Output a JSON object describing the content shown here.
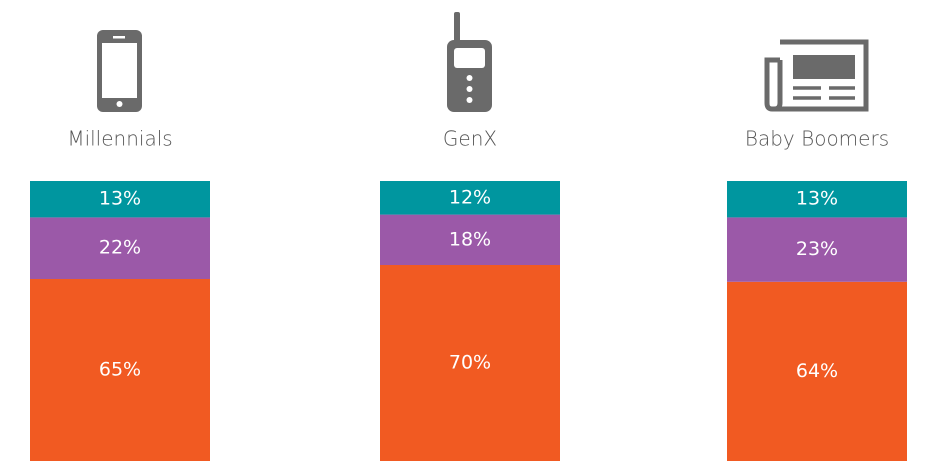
{
  "chart_data": {
    "type": "stacked_bar",
    "categories": [
      "Millennials",
      "GenX",
      "Baby Boomers"
    ],
    "series": [
      {
        "color": "#f15a22",
        "values": [
          65,
          70,
          64
        ],
        "value_labels": [
          "65%",
          "70%",
          "64%"
        ]
      },
      {
        "color": "#9b59a8",
        "values": [
          22,
          18,
          23
        ],
        "value_labels": [
          "22%",
          "18%",
          "23%"
        ]
      },
      {
        "color": "#00969f",
        "values": [
          13,
          12,
          13
        ],
        "value_labels": [
          "13%",
          "12%",
          "13%"
        ]
      }
    ],
    "ylim": [
      0,
      100
    ]
  }
}
